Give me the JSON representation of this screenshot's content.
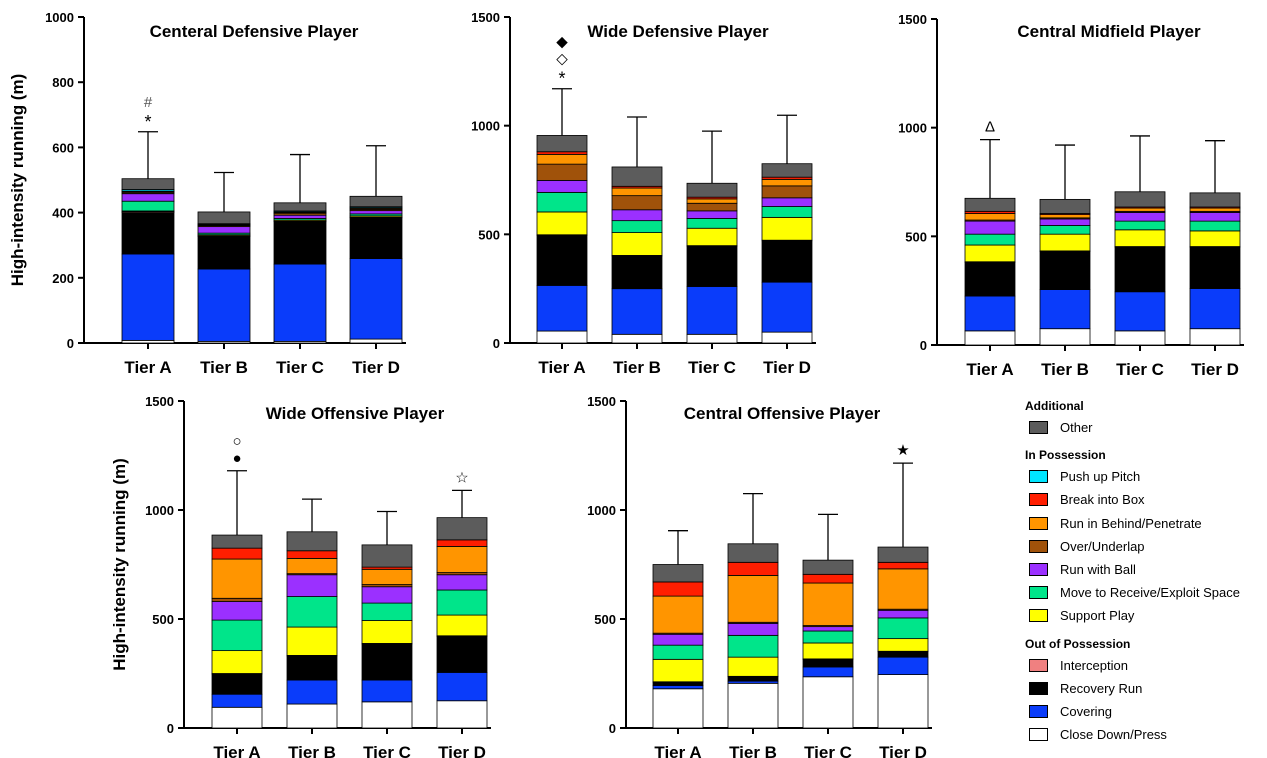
{
  "y_axis_label": "High-intensity running (m)",
  "colors": {
    "Close Down/Press": "#ffffff",
    "Covering": "#0a3cfa",
    "Recovery Run": "#000000",
    "Interception": "#f08080",
    "Support Play": "#ffff00",
    "Move to Receive/Exploit Space": "#00e58a",
    "Run with Ball": "#9b30ff",
    "Over/Underlap": "#a0520a",
    "Run in Behind/Penetrate": "#ff9500",
    "Break into Box": "#ff1e00",
    "Push up Pitch": "#00e5ff",
    "Other": "#5c5c5c"
  },
  "legend": [
    {
      "heading": "Additional",
      "items": [
        "Other"
      ]
    },
    {
      "heading": "In Possession",
      "items": [
        "Push up Pitch",
        "Break into Box",
        "Run in Behind/Penetrate",
        "Over/Underlap",
        "Run with Ball",
        "Move to Receive/Exploit Space",
        "Support Play"
      ]
    },
    {
      "heading": "Out of Possession",
      "items": [
        "Interception",
        "Recovery Run",
        "Covering",
        "Close Down/Press"
      ]
    }
  ],
  "chart_data": [
    {
      "type": "bar",
      "stacked": true,
      "title": "Centeral Defensive Player",
      "categories": [
        "Tier A",
        "Tier B",
        "Tier C",
        "Tier D"
      ],
      "ylim": [
        0,
        1000
      ],
      "yticks": [
        0,
        200,
        400,
        600,
        800,
        1000
      ],
      "ylabel": "High-intensity running (m)",
      "series": [
        {
          "name": "Close Down/Press",
          "values": [
            8,
            5,
            5,
            12
          ]
        },
        {
          "name": "Covering",
          "values": [
            265,
            222,
            237,
            247
          ]
        },
        {
          "name": "Recovery Run",
          "values": [
            127,
            100,
            130,
            125
          ]
        },
        {
          "name": "Interception",
          "values": [
            3,
            2,
            2,
            2
          ]
        },
        {
          "name": "Support Play",
          "values": [
            2,
            3,
            3,
            4
          ]
        },
        {
          "name": "Move to Receive/Exploit Space",
          "values": [
            30,
            5,
            5,
            6
          ]
        },
        {
          "name": "Run with Ball",
          "values": [
            23,
            20,
            10,
            10
          ]
        },
        {
          "name": "Over/Underlap",
          "values": [
            3,
            3,
            5,
            4
          ]
        },
        {
          "name": "Run in Behind/Penetrate",
          "values": [
            3,
            2,
            3,
            3
          ]
        },
        {
          "name": "Break into Box",
          "values": [
            2,
            2,
            2,
            2
          ]
        },
        {
          "name": "Push up Pitch",
          "values": [
            5,
            2,
            3,
            3
          ]
        },
        {
          "name": "Other",
          "values": [
            33,
            36,
            25,
            32
          ]
        }
      ],
      "error_tops": [
        648,
        523,
        578,
        605
      ],
      "annotations": [
        {
          "category": "Tier A",
          "symbols": [
            "#",
            "*"
          ]
        }
      ]
    },
    {
      "type": "bar",
      "stacked": true,
      "title": "Wide Defensive Player",
      "categories": [
        "Tier A",
        "Tier B",
        "Tier C",
        "Tier D"
      ],
      "ylim": [
        0,
        1500
      ],
      "yticks": [
        0,
        500,
        1000,
        1500
      ],
      "series": [
        {
          "name": "Close Down/Press",
          "values": [
            55,
            40,
            40,
            50
          ]
        },
        {
          "name": "Covering",
          "values": [
            210,
            210,
            220,
            230
          ]
        },
        {
          "name": "Recovery Run",
          "values": [
            230,
            150,
            185,
            190
          ]
        },
        {
          "name": "Interception",
          "values": [
            3,
            3,
            3,
            3
          ]
        },
        {
          "name": "Support Play",
          "values": [
            105,
            105,
            80,
            105
          ]
        },
        {
          "name": "Move to Receive/Exploit Space",
          "values": [
            90,
            55,
            45,
            50
          ]
        },
        {
          "name": "Run with Ball",
          "values": [
            55,
            50,
            35,
            40
          ]
        },
        {
          "name": "Over/Underlap",
          "values": [
            75,
            65,
            35,
            55
          ]
        },
        {
          "name": "Run in Behind/Penetrate",
          "values": [
            45,
            35,
            20,
            30
          ]
        },
        {
          "name": "Break into Box",
          "values": [
            12,
            8,
            8,
            10
          ]
        },
        {
          "name": "Push up Pitch",
          "values": [
            0,
            0,
            0,
            0
          ]
        },
        {
          "name": "Other",
          "values": [
            75,
            89,
            64,
            62
          ]
        }
      ],
      "error_tops": [
        1170,
        1040,
        975,
        1048
      ],
      "annotations": [
        {
          "category": "Tier A",
          "symbols": [
            "◆",
            "◇",
            "*"
          ]
        }
      ]
    },
    {
      "type": "bar",
      "stacked": true,
      "title": "Central Midfield Player",
      "categories": [
        "Tier A",
        "Tier B",
        "Tier C",
        "Tier D"
      ],
      "ylim": [
        0,
        1500
      ],
      "yticks": [
        0,
        500,
        1000,
        1500
      ],
      "series": [
        {
          "name": "Close Down/Press",
          "values": [
            65,
            75,
            65,
            75
          ]
        },
        {
          "name": "Covering",
          "values": [
            160,
            180,
            180,
            185
          ]
        },
        {
          "name": "Recovery Run",
          "values": [
            155,
            175,
            205,
            190
          ]
        },
        {
          "name": "Interception",
          "values": [
            3,
            3,
            3,
            3
          ]
        },
        {
          "name": "Support Play",
          "values": [
            77,
            77,
            77,
            72
          ]
        },
        {
          "name": "Move to Receive/Exploit Space",
          "values": [
            50,
            40,
            40,
            45
          ]
        },
        {
          "name": "Run with Ball",
          "values": [
            60,
            30,
            40,
            40
          ]
        },
        {
          "name": "Over/Underlap",
          "values": [
            5,
            5,
            5,
            5
          ]
        },
        {
          "name": "Run in Behind/Penetrate",
          "values": [
            30,
            15,
            15,
            15
          ]
        },
        {
          "name": "Break into Box",
          "values": [
            10,
            5,
            5,
            5
          ]
        },
        {
          "name": "Push up Pitch",
          "values": [
            0,
            0,
            0,
            0
          ]
        },
        {
          "name": "Other",
          "values": [
            60,
            65,
            70,
            65
          ]
        }
      ],
      "error_tops": [
        945,
        920,
        962,
        940
      ],
      "annotations": [
        {
          "category": "Tier A",
          "symbols": [
            "Δ"
          ]
        }
      ]
    },
    {
      "type": "bar",
      "stacked": true,
      "title": "Wide Offensive Player",
      "categories": [
        "Tier A",
        "Tier B",
        "Tier C",
        "Tier D"
      ],
      "ylim": [
        0,
        1500
      ],
      "yticks": [
        0,
        500,
        1000,
        1500
      ],
      "ylabel": "High-intensity running (m)",
      "series": [
        {
          "name": "Close Down/Press",
          "values": [
            95,
            110,
            120,
            125
          ]
        },
        {
          "name": "Covering",
          "values": [
            60,
            110,
            100,
            130
          ]
        },
        {
          "name": "Recovery Run",
          "values": [
            92,
            110,
            165,
            165
          ]
        },
        {
          "name": "Interception",
          "values": [
            3,
            3,
            3,
            3
          ]
        },
        {
          "name": "Support Play",
          "values": [
            105,
            130,
            105,
            95
          ]
        },
        {
          "name": "Move to Receive/Exploit Space",
          "values": [
            140,
            140,
            80,
            115
          ]
        },
        {
          "name": "Run with Ball",
          "values": [
            85,
            100,
            75,
            70
          ]
        },
        {
          "name": "Over/Underlap",
          "values": [
            15,
            5,
            10,
            10
          ]
        },
        {
          "name": "Run in Behind/Penetrate",
          "values": [
            180,
            70,
            70,
            120
          ]
        },
        {
          "name": "Break into Box",
          "values": [
            50,
            35,
            10,
            30
          ]
        },
        {
          "name": "Push up Pitch",
          "values": [
            0,
            0,
            0,
            0
          ]
        },
        {
          "name": "Other",
          "values": [
            60,
            87,
            102,
            102
          ]
        }
      ],
      "error_tops": [
        1180,
        1050,
        993,
        1090
      ],
      "annotations": [
        {
          "category": "Tier A",
          "symbols": [
            "○",
            "●"
          ]
        },
        {
          "category": "Tier D",
          "symbols": [
            "☆"
          ]
        }
      ]
    },
    {
      "type": "bar",
      "stacked": true,
      "title": "Central Offensive Player",
      "categories": [
        "Tier A",
        "Tier B",
        "Tier C",
        "Tier D"
      ],
      "ylim": [
        0,
        1500
      ],
      "yticks": [
        0,
        500,
        1000,
        1500
      ],
      "series": [
        {
          "name": "Close Down/Press",
          "values": [
            180,
            205,
            235,
            245
          ]
        },
        {
          "name": "Covering",
          "values": [
            15,
            10,
            45,
            80
          ]
        },
        {
          "name": "Recovery Run",
          "values": [
            15,
            20,
            35,
            25
          ]
        },
        {
          "name": "Interception",
          "values": [
            2,
            2,
            2,
            2
          ]
        },
        {
          "name": "Support Play",
          "values": [
            103,
            88,
            73,
            58
          ]
        },
        {
          "name": "Move to Receive/Exploit Space",
          "values": [
            65,
            100,
            55,
            95
          ]
        },
        {
          "name": "Run with Ball",
          "values": [
            50,
            55,
            20,
            35
          ]
        },
        {
          "name": "Over/Underlap",
          "values": [
            5,
            5,
            5,
            5
          ]
        },
        {
          "name": "Run in Behind/Penetrate",
          "values": [
            170,
            215,
            195,
            185
          ]
        },
        {
          "name": "Break into Box",
          "values": [
            65,
            60,
            40,
            30
          ]
        },
        {
          "name": "Push up Pitch",
          "values": [
            0,
            0,
            0,
            0
          ]
        },
        {
          "name": "Other",
          "values": [
            80,
            85,
            65,
            70
          ]
        }
      ],
      "error_tops": [
        905,
        1075,
        980,
        1215
      ],
      "annotations": [
        {
          "category": "Tier D",
          "symbols": [
            "★"
          ]
        }
      ]
    }
  ]
}
